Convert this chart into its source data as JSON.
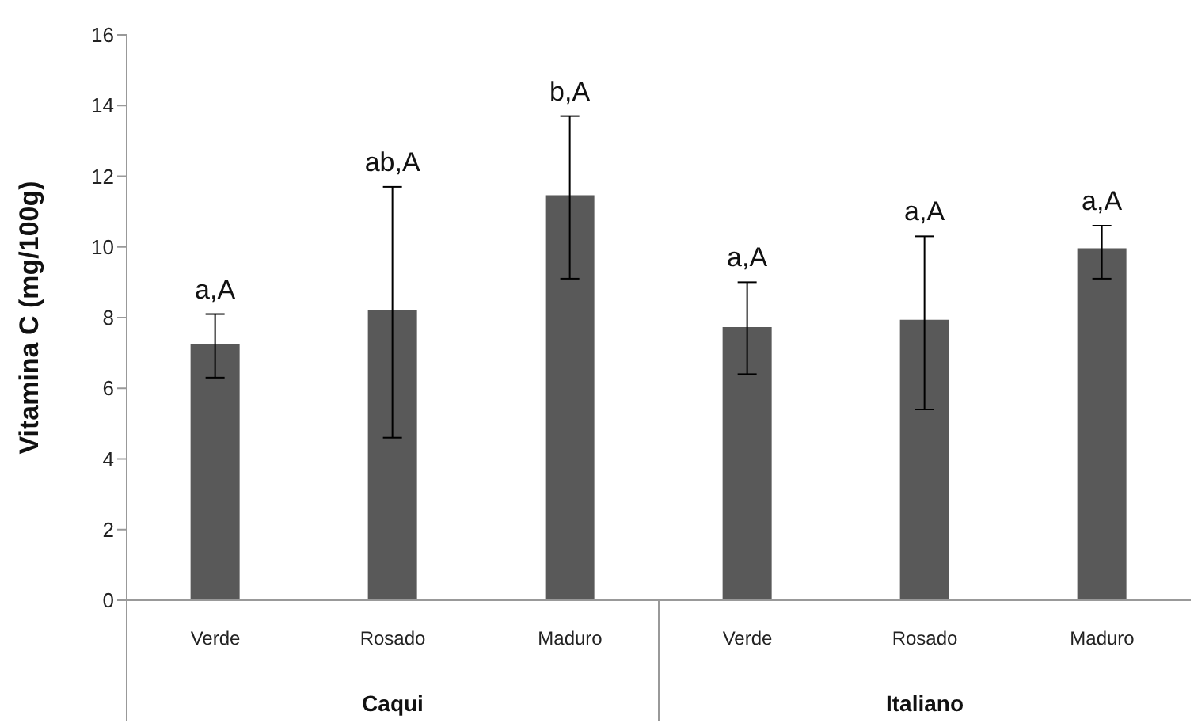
{
  "chart_data": {
    "type": "bar",
    "ylabel": "Vitamina C (mg/100g)",
    "categories": [
      "Verde",
      "Rosado",
      "Maduro",
      "Verde",
      "Rosado",
      "Maduro"
    ],
    "values": [
      7.25,
      8.22,
      11.46,
      7.73,
      7.94,
      9.96
    ],
    "errors": [
      [
        6.3,
        8.1
      ],
      [
        4.6,
        11.7
      ],
      [
        9.1,
        13.7
      ],
      [
        6.4,
        9.0
      ],
      [
        5.4,
        10.3
      ],
      [
        9.1,
        10.6
      ]
    ],
    "color": "#595959",
    "ylim": [
      0,
      16
    ],
    "yticks": [
      0,
      2,
      4,
      6,
      8,
      10,
      12,
      14,
      16
    ],
    "annotations": [
      "a,A",
      "ab,A",
      "b,A",
      "a,A",
      "a,A",
      "a,A",
      "Caqui",
      "Italiano"
    ]
  }
}
